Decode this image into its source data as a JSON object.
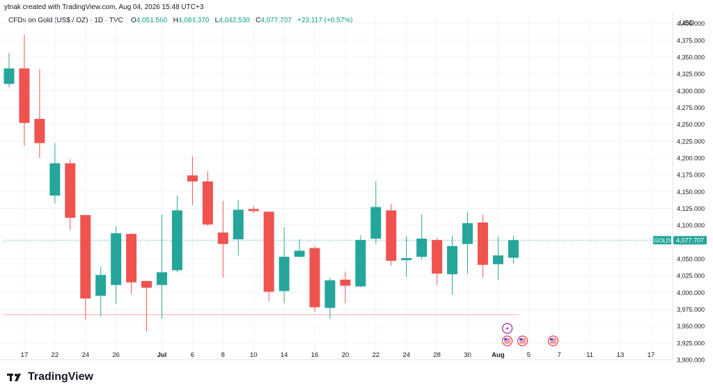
{
  "header": {
    "attribution": "ytnak created with TradingView.com, Aug 04, 2026 15:48 UTC+3"
  },
  "legend": {
    "symbol": "CFDs on Gold (US$ / OZ) · 1D · TVC",
    "o_label": "O",
    "o_value": "4,051.560",
    "h_label": "H",
    "h_value": "4,084.370",
    "l_label": "L",
    "l_value": "4,042.530",
    "c_label": "C",
    "c_value": "4,077.707",
    "change": "+23.117 (+0.57%)"
  },
  "currency": "USD",
  "footer": {
    "brand": "TradingView"
  },
  "colors": {
    "up": "#26a69a",
    "down": "#ef5350",
    "grid": "#f0f3fa",
    "axis_text": "#131722",
    "price_line": "#26a69a",
    "support_line": "#f7a8ae",
    "event_purple": "#9c27b0",
    "event_red": "#f23645"
  },
  "chart_data": {
    "type": "candlestick",
    "symbol_tag": "GOLD",
    "last_price": "4,077.707",
    "last_price_value": 4077.707,
    "horizontal_line_value": 3967,
    "ylim": [
      3900,
      4412
    ],
    "y_ticks": [
      "3,900.000",
      "3,925.000",
      "3,950.000",
      "3,975.000",
      "4,000.000",
      "4,025.000",
      "4,050.000",
      "4,075.000",
      "4,100.000",
      "4,125.000",
      "4,150.000",
      "4,175.000",
      "4,200.000",
      "4,225.000",
      "4,250.000",
      "4,275.000",
      "4,300.000",
      "4,325.000",
      "4,350.000",
      "4,375.000",
      "4,400.000"
    ],
    "x_ticks": [
      {
        "label": "17",
        "idx": 1
      },
      {
        "label": "22",
        "idx": 3
      },
      {
        "label": "24",
        "idx": 5
      },
      {
        "label": "26",
        "idx": 7
      },
      {
        "label": "Jul",
        "idx": 10,
        "bold": true
      },
      {
        "label": "6",
        "idx": 12
      },
      {
        "label": "8",
        "idx": 14
      },
      {
        "label": "10",
        "idx": 16
      },
      {
        "label": "14",
        "idx": 18
      },
      {
        "label": "16",
        "idx": 20
      },
      {
        "label": "20",
        "idx": 22
      },
      {
        "label": "22",
        "idx": 24
      },
      {
        "label": "24",
        "idx": 26
      },
      {
        "label": "28",
        "idx": 28
      },
      {
        "label": "30",
        "idx": 30
      },
      {
        "label": "Aug",
        "idx": 32,
        "bold": true
      },
      {
        "label": "5",
        "idx": 34
      },
      {
        "label": "7",
        "idx": 36
      },
      {
        "label": "11",
        "idx": 38
      },
      {
        "label": "13",
        "idx": 40
      },
      {
        "label": "17",
        "idx": 42
      }
    ],
    "candles": [
      {
        "o": 4310,
        "h": 4356,
        "l": 4305,
        "c": 4333
      },
      {
        "o": 4333,
        "h": 4383,
        "l": 4218,
        "c": 4252
      },
      {
        "o": 4258,
        "h": 4332,
        "l": 4200,
        "c": 4222
      },
      {
        "o": 4144,
        "h": 4222,
        "l": 4132,
        "c": 4192
      },
      {
        "o": 4192,
        "h": 4198,
        "l": 4093,
        "c": 4111
      },
      {
        "o": 4115,
        "h": 4115,
        "l": 3960,
        "c": 3991
      },
      {
        "o": 3995,
        "h": 4038,
        "l": 3964,
        "c": 4026
      },
      {
        "o": 4011,
        "h": 4098,
        "l": 3983,
        "c": 4088
      },
      {
        "o": 4087,
        "h": 4088,
        "l": 3998,
        "c": 4015
      },
      {
        "o": 4017,
        "h": 4017,
        "l": 3942,
        "c": 4007
      },
      {
        "o": 4011,
        "h": 4116,
        "l": 3961,
        "c": 4030
      },
      {
        "o": 4033,
        "h": 4144,
        "l": 4030,
        "c": 4122
      },
      {
        "o": 4174,
        "h": 4202,
        "l": 4130,
        "c": 4165
      },
      {
        "o": 4165,
        "h": 4180,
        "l": 4099,
        "c": 4101
      },
      {
        "o": 4089,
        "h": 4136,
        "l": 4022,
        "c": 4072
      },
      {
        "o": 4079,
        "h": 4137,
        "l": 4055,
        "c": 4123
      },
      {
        "o": 4124,
        "h": 4128,
        "l": 4118,
        "c": 4121
      },
      {
        "o": 4120,
        "h": 4120,
        "l": 3987,
        "c": 4001
      },
      {
        "o": 4002,
        "h": 4097,
        "l": 3984,
        "c": 4053
      },
      {
        "o": 4053,
        "h": 4079,
        "l": 4052,
        "c": 4062
      },
      {
        "o": 4066,
        "h": 4069,
        "l": 3971,
        "c": 3978
      },
      {
        "o": 3977,
        "h": 4022,
        "l": 3961,
        "c": 4018
      },
      {
        "o": 4019,
        "h": 4031,
        "l": 3984,
        "c": 4010
      },
      {
        "o": 4009,
        "h": 4085,
        "l": 4008,
        "c": 4078
      },
      {
        "o": 4080,
        "h": 4165,
        "l": 4072,
        "c": 4127
      },
      {
        "o": 4122,
        "h": 4132,
        "l": 4040,
        "c": 4047
      },
      {
        "o": 4048,
        "h": 4084,
        "l": 4023,
        "c": 4051
      },
      {
        "o": 4053,
        "h": 4116,
        "l": 4049,
        "c": 4080
      },
      {
        "o": 4078,
        "h": 4081,
        "l": 4011,
        "c": 4028
      },
      {
        "o": 4027,
        "h": 4084,
        "l": 3997,
        "c": 4069
      },
      {
        "o": 4072,
        "h": 4120,
        "l": 4028,
        "c": 4103
      },
      {
        "o": 4104,
        "h": 4116,
        "l": 4022,
        "c": 4041
      },
      {
        "o": 4042,
        "h": 4083,
        "l": 4019,
        "c": 4055
      },
      {
        "o": 4051.56,
        "h": 4084.37,
        "l": 4042.53,
        "c": 4077.707
      }
    ],
    "events": [
      {
        "type": "economic-alert",
        "idx": 32.6,
        "row": 0
      },
      {
        "type": "us-flag",
        "idx": 32.6,
        "row": 1
      },
      {
        "type": "us-flag",
        "idx": 33.6,
        "row": 1
      },
      {
        "type": "us-flag",
        "idx": 35.6,
        "row": 1
      }
    ]
  }
}
